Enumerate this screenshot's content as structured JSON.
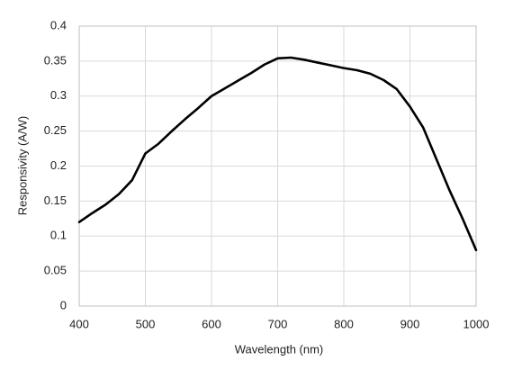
{
  "chart_data": {
    "type": "line",
    "x_label": "Wavelength (nm)",
    "y_label": "Responsivity (A/W)",
    "x": [
      400,
      420,
      440,
      460,
      480,
      500,
      520,
      540,
      560,
      580,
      600,
      620,
      640,
      660,
      680,
      700,
      720,
      740,
      760,
      780,
      800,
      820,
      840,
      860,
      880,
      900,
      920,
      940,
      960,
      980,
      1000
    ],
    "values": [
      0.12,
      0.133,
      0.145,
      0.16,
      0.18,
      0.218,
      0.232,
      0.25,
      0.267,
      0.283,
      0.3,
      0.311,
      0.322,
      0.333,
      0.345,
      0.354,
      0.355,
      0.352,
      0.348,
      0.344,
      0.34,
      0.337,
      0.332,
      0.323,
      0.31,
      0.285,
      0.255,
      0.21,
      0.165,
      0.124,
      0.08
    ],
    "color": "#000000",
    "xlim": [
      400,
      1000
    ],
    "xticks": [
      400,
      500,
      600,
      700,
      800,
      900,
      1000
    ],
    "ylim": [
      0,
      0.4
    ],
    "yticks": [
      0,
      0.05,
      0.1,
      0.15,
      0.2,
      0.25,
      0.3,
      0.35,
      0.4
    ],
    "grid": true
  }
}
